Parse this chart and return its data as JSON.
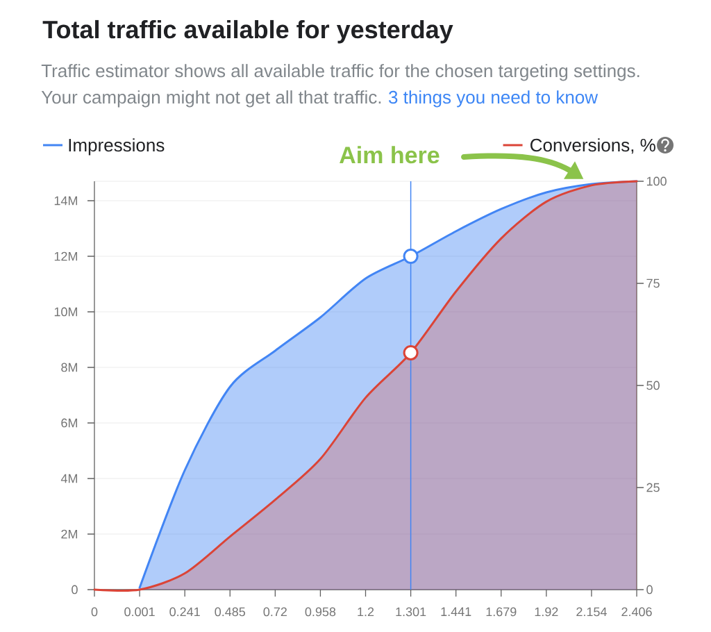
{
  "chart_data": {
    "type": "area",
    "title": "Total traffic available for yesterday",
    "subtitle": "Traffic estimator shows all available traffic for the chosen targeting settings.",
    "annotations": [
      "Your campaign might not get all that traffic.",
      "3 things you need to know",
      "Aim here"
    ],
    "categories": [
      "0",
      "0.001",
      "0.241",
      "0.485",
      "0.72",
      "0.958",
      "1.2",
      "1.301",
      "1.441",
      "1.679",
      "1.92",
      "2.154",
      "2.406"
    ],
    "series": [
      {
        "name": "Impressions",
        "color": "#4285f4",
        "values": [
          null,
          70000,
          4300000,
          7300000,
          8600000,
          9800000,
          11200000,
          12000000,
          12900000,
          13700000,
          14300000,
          14600000,
          14700000
        ]
      },
      {
        "name": "Conversions, %",
        "color": "#db4437",
        "axis": "y2",
        "values": [
          0,
          0,
          4,
          13,
          22,
          32,
          47,
          58,
          73,
          86,
          95,
          99,
          100
        ]
      },
      {
        "type": "scatter",
        "x": [
          "1.301"
        ],
        "values": [
          12000000
        ],
        "color": "#4285f4",
        "marker": "circle"
      },
      {
        "type": "scatter",
        "x": [
          "1.301"
        ],
        "values": [
          58
        ],
        "color": "#db4437",
        "axis": "y2",
        "marker": "circle"
      }
    ],
    "ylim": [
      0,
      14700000
    ],
    "yticks": [
      0,
      {
        "value": 2000000,
        "label": "2M"
      },
      {
        "value": 4000000,
        "label": "4M"
      },
      {
        "value": 6000000,
        "label": "6M"
      },
      {
        "value": 8000000,
        "label": "8M"
      },
      {
        "value": 10000000,
        "label": "10M"
      },
      {
        "value": 12000000,
        "label": "12M"
      },
      {
        "value": 14000000,
        "label": "14M"
      }
    ],
    "y2lim": [
      0,
      100
    ],
    "y2ticks": [
      0,
      25,
      50,
      75,
      100
    ],
    "ref_lines": [
      {
        "axis": "x",
        "value": "1.301",
        "color": "#4285f4"
      }
    ],
    "grid": "y",
    "legend": "top",
    "marker": "none",
    "line_style": "solid"
  }
}
